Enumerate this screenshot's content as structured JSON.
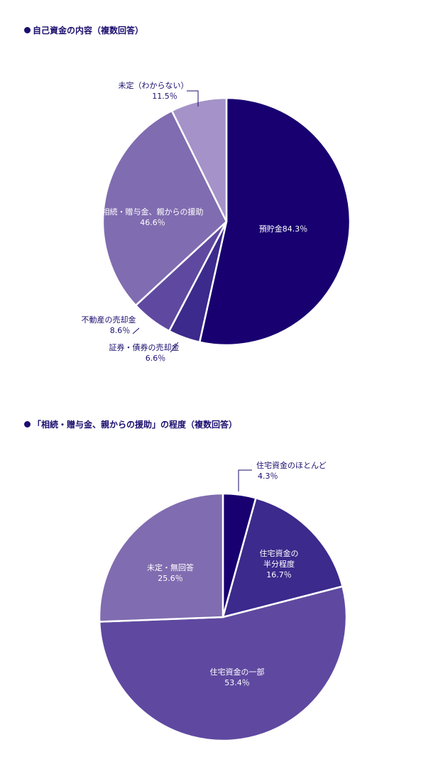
{
  "chart_data": [
    {
      "type": "pie",
      "title": "自己資金の内容（複数回答）",
      "slices": [
        {
          "label": "預貯金",
          "value_text": "84.3％",
          "value": 84.3,
          "color": "#180070",
          "text_color": "#ffffff"
        },
        {
          "label": "証券・債券の売却金",
          "value_text": "6.6％",
          "value": 6.6,
          "color": "#3c2a8c",
          "text_color": "#1a0e6e"
        },
        {
          "label": "不動産の売却金",
          "value_text": "8.6％",
          "value": 8.6,
          "color": "#5f49a0",
          "text_color": "#1a0e6e"
        },
        {
          "label": "相続・贈与金、親からの援助",
          "value_text": "46.6％",
          "value": 46.6,
          "color": "#806cb0",
          "text_color": "#ffffff"
        },
        {
          "label": "未定（わからない）",
          "value_text": "11.5％",
          "value": 11.5,
          "color": "#a492c8",
          "text_color": "#1a0e6e"
        }
      ]
    },
    {
      "type": "pie",
      "title": "「相続・贈与金、親からの援助」の程度（複数回答）",
      "slices": [
        {
          "label": "住宅資金のほとんど",
          "value_text": "4.3％",
          "value": 4.3,
          "color": "#180070",
          "text_color": "#1a0e6e"
        },
        {
          "label": "住宅資金の半分程度",
          "label_lines": [
            "住宅資金の",
            "半分程度"
          ],
          "value_text": "16.7％",
          "value": 16.7,
          "color": "#3c2a8c",
          "text_color": "#ffffff"
        },
        {
          "label": "住宅資金の一部",
          "value_text": "53.4％",
          "value": 53.4,
          "color": "#5f49a0",
          "text_color": "#ffffff"
        },
        {
          "label": "未定・無回答",
          "value_text": "25.6％",
          "value": 25.6,
          "color": "#806cb0",
          "text_color": "#ffffff"
        }
      ]
    }
  ]
}
